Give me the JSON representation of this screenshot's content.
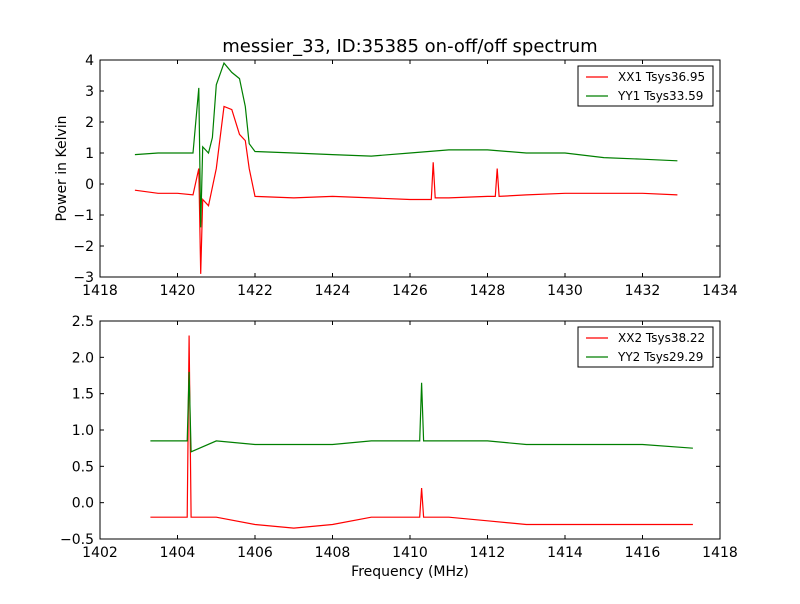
{
  "chart_data": [
    {
      "type": "line",
      "title": "messier_33, ID:35385 on-off/off spectrum",
      "xlabel": "",
      "ylabel": "Power in Kelvin",
      "xlim": [
        1418,
        1434
      ],
      "ylim": [
        -3,
        4
      ],
      "xticks": [
        1418,
        1420,
        1422,
        1424,
        1426,
        1428,
        1430,
        1432,
        1434
      ],
      "yticks": [
        -3,
        -2,
        -1,
        0,
        1,
        2,
        3,
        4
      ],
      "grid": false,
      "legend_position": "top-right",
      "series": [
        {
          "name": "XX1 Tsys36.95",
          "color": "#ff0000",
          "x": [
            1418.9,
            1419.5,
            1420.0,
            1420.4,
            1420.55,
            1420.6,
            1420.65,
            1420.8,
            1420.9,
            1421.0,
            1421.2,
            1421.4,
            1421.6,
            1421.75,
            1421.85,
            1422.0,
            1423.0,
            1424.0,
            1425.0,
            1426.0,
            1426.55,
            1426.6,
            1426.65,
            1427.0,
            1428.0,
            1428.2,
            1428.25,
            1428.3,
            1429.0,
            1430.0,
            1431.0,
            1432.0,
            1432.9
          ],
          "y": [
            -0.2,
            -0.3,
            -0.3,
            -0.35,
            0.5,
            -2.9,
            -0.5,
            -0.7,
            -0.1,
            0.5,
            2.5,
            2.4,
            1.6,
            1.4,
            0.5,
            -0.4,
            -0.45,
            -0.4,
            -0.45,
            -0.5,
            -0.5,
            0.7,
            -0.45,
            -0.45,
            -0.4,
            -0.4,
            0.5,
            -0.4,
            -0.35,
            -0.3,
            -0.3,
            -0.3,
            -0.35
          ]
        },
        {
          "name": "YY1 Tsys33.59",
          "color": "#007f00",
          "x": [
            1418.9,
            1419.5,
            1420.0,
            1420.4,
            1420.55,
            1420.6,
            1420.65,
            1420.8,
            1420.9,
            1421.0,
            1421.2,
            1421.4,
            1421.6,
            1421.75,
            1421.85,
            1422.0,
            1423.0,
            1424.0,
            1425.0,
            1426.0,
            1427.0,
            1428.0,
            1429.0,
            1430.0,
            1431.0,
            1432.0,
            1432.9
          ],
          "y": [
            0.95,
            1.0,
            1.0,
            1.0,
            3.1,
            -1.4,
            1.2,
            1.0,
            1.5,
            3.2,
            3.9,
            3.6,
            3.4,
            2.5,
            1.3,
            1.05,
            1.0,
            0.95,
            0.9,
            1.0,
            1.1,
            1.1,
            1.0,
            1.0,
            0.85,
            0.8,
            0.75
          ]
        }
      ]
    },
    {
      "type": "line",
      "title": "",
      "xlabel": "Frequency (MHz)",
      "ylabel": "",
      "xlim": [
        1402,
        1418
      ],
      "ylim": [
        -0.5,
        2.5
      ],
      "xticks": [
        1402,
        1404,
        1406,
        1408,
        1410,
        1412,
        1414,
        1416,
        1418
      ],
      "yticks": [
        -0.5,
        0.0,
        0.5,
        1.0,
        1.5,
        2.0,
        2.5
      ],
      "yticklabels": [
        "−0.5",
        "0.0",
        "0.5",
        "1.0",
        "1.5",
        "2.0",
        "2.5"
      ],
      "grid": false,
      "legend_position": "top-right",
      "series": [
        {
          "name": "XX2 Tsys38.22",
          "color": "#ff0000",
          "x": [
            1403.3,
            1404.0,
            1404.25,
            1404.3,
            1404.35,
            1405.0,
            1406.0,
            1407.0,
            1408.0,
            1409.0,
            1410.0,
            1410.25,
            1410.3,
            1410.35,
            1411.0,
            1412.0,
            1413.0,
            1414.0,
            1415.0,
            1416.0,
            1417.3
          ],
          "y": [
            -0.2,
            -0.2,
            -0.2,
            2.3,
            -0.2,
            -0.2,
            -0.3,
            -0.35,
            -0.3,
            -0.2,
            -0.2,
            -0.2,
            0.2,
            -0.2,
            -0.2,
            -0.25,
            -0.3,
            -0.3,
            -0.3,
            -0.3,
            -0.3
          ]
        },
        {
          "name": "YY2 Tsys29.29",
          "color": "#007f00",
          "x": [
            1403.3,
            1404.0,
            1404.25,
            1404.3,
            1404.35,
            1405.0,
            1406.0,
            1407.0,
            1408.0,
            1409.0,
            1410.0,
            1410.25,
            1410.3,
            1410.35,
            1411.0,
            1412.0,
            1413.0,
            1414.0,
            1415.0,
            1416.0,
            1417.3
          ],
          "y": [
            0.85,
            0.85,
            0.85,
            1.8,
            0.7,
            0.85,
            0.8,
            0.8,
            0.8,
            0.85,
            0.85,
            0.85,
            1.65,
            0.85,
            0.85,
            0.85,
            0.8,
            0.8,
            0.8,
            0.8,
            0.75
          ]
        }
      ]
    }
  ]
}
